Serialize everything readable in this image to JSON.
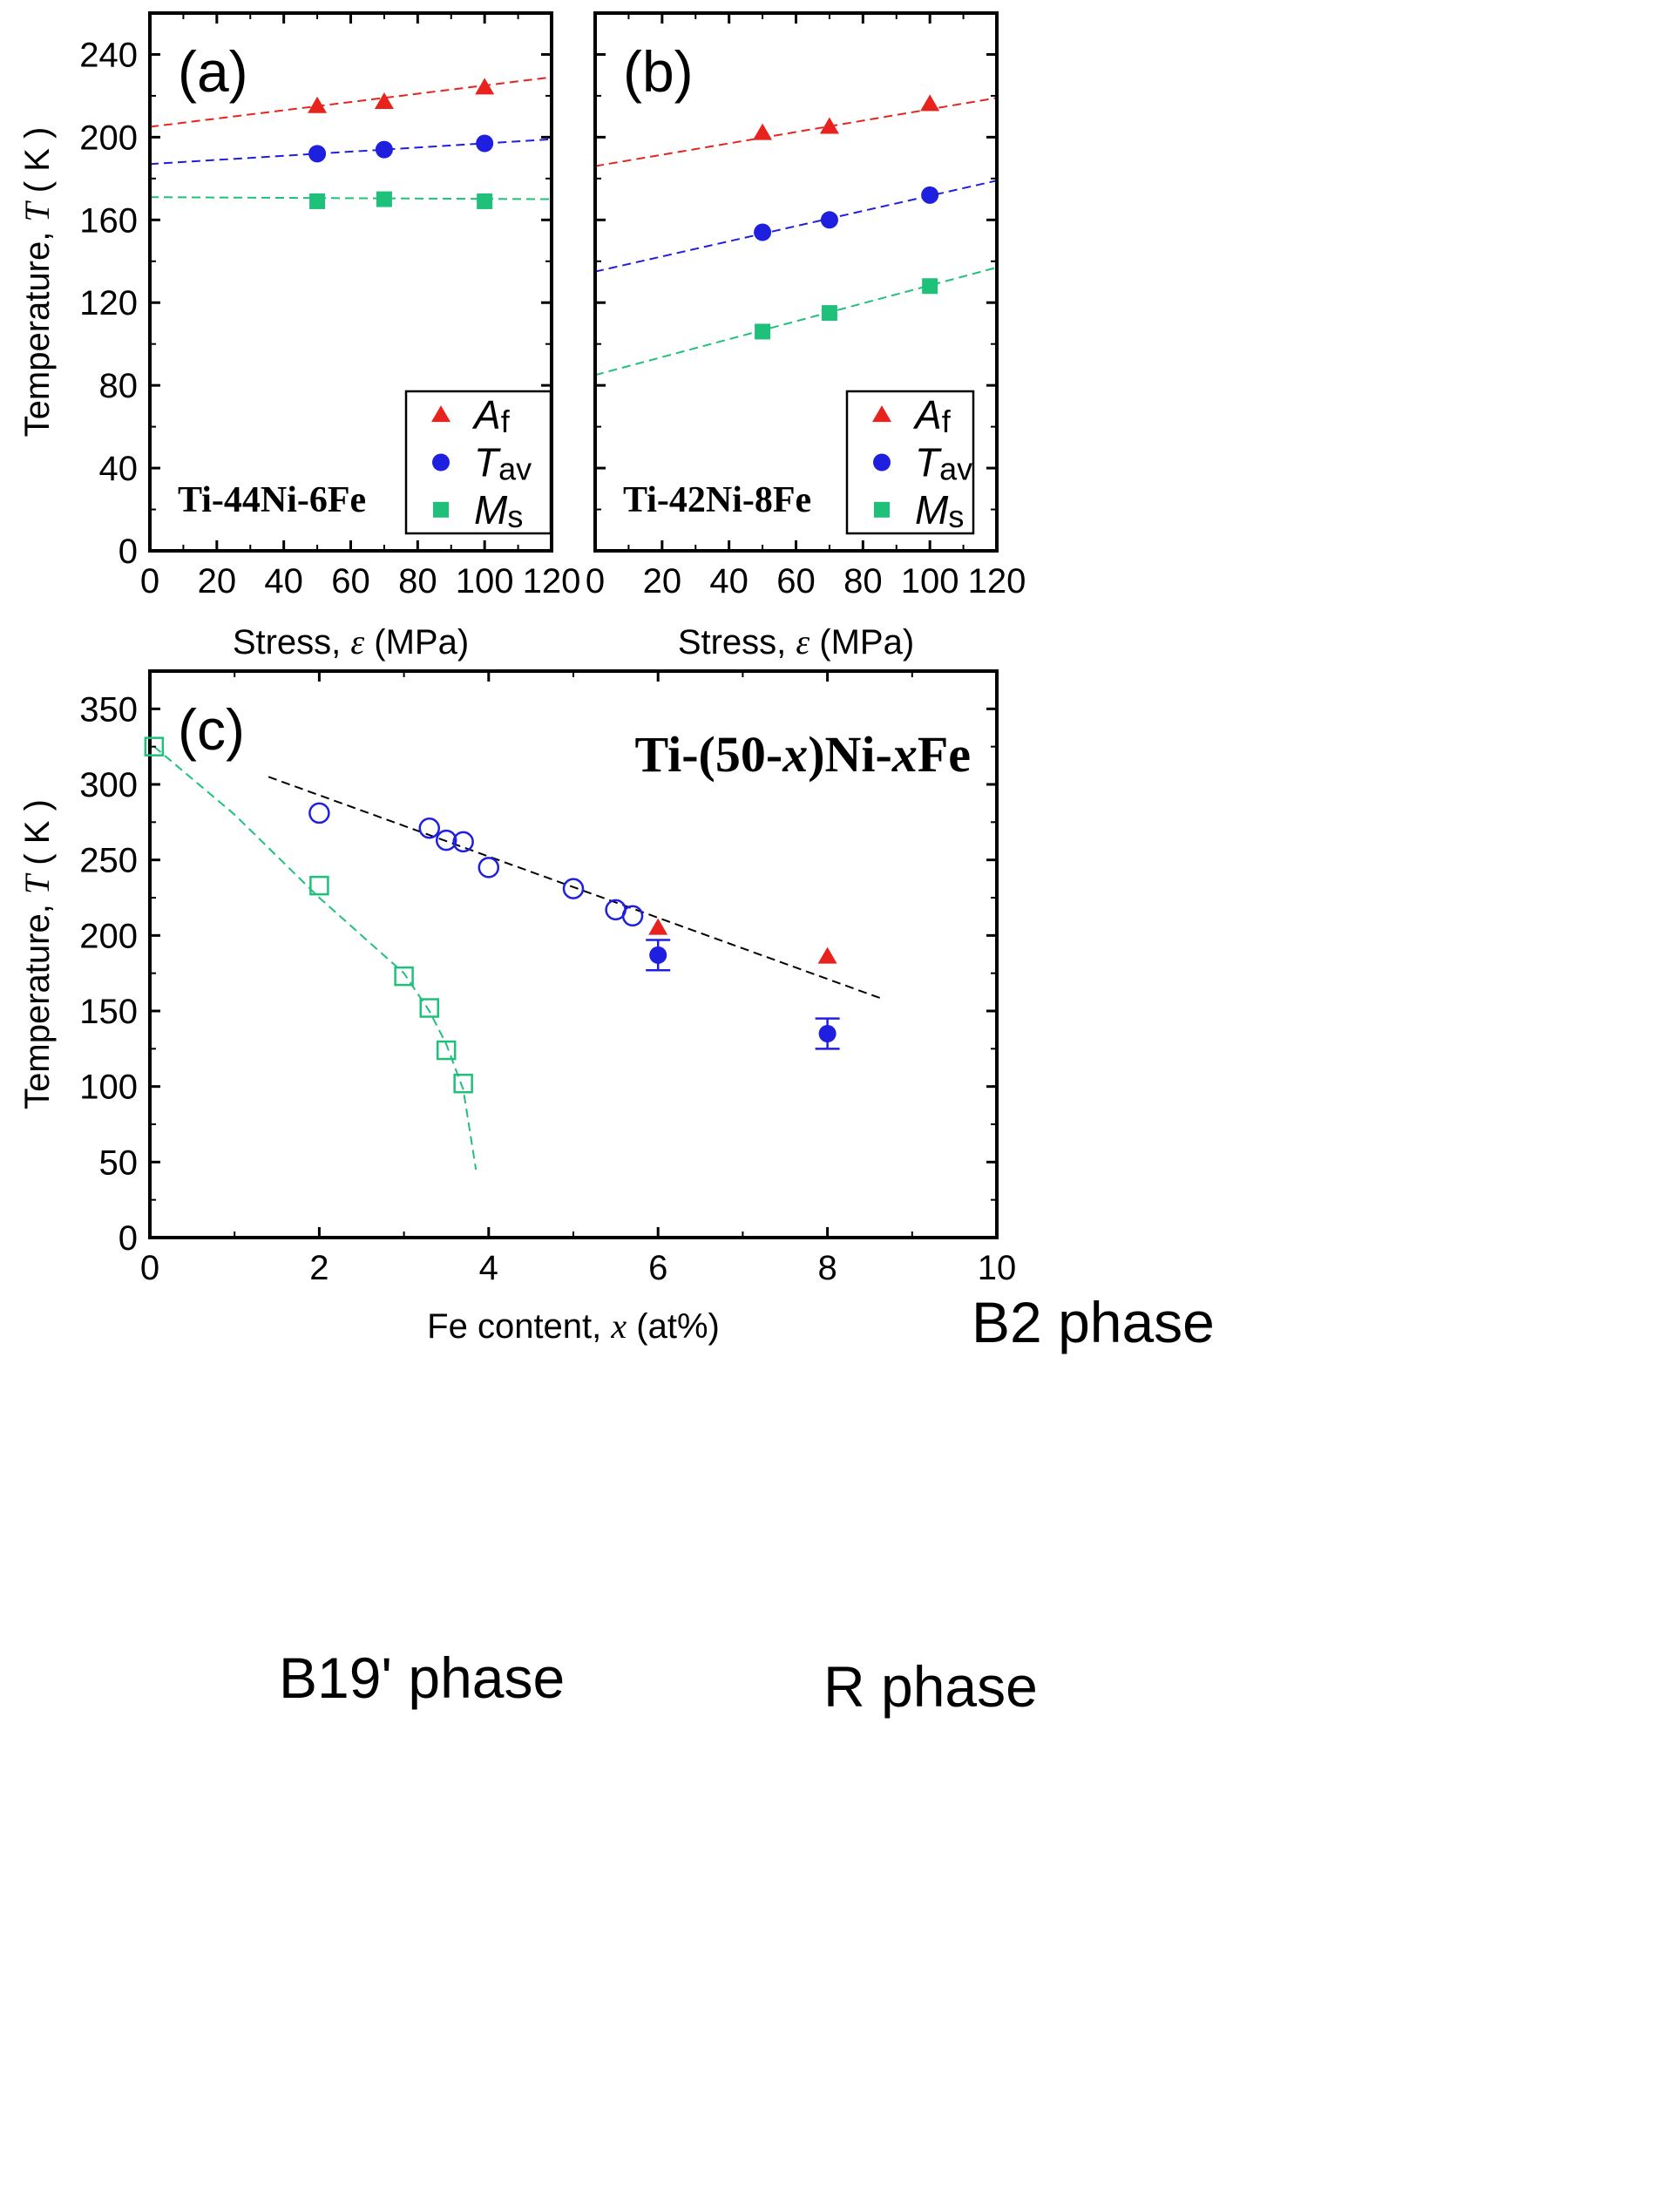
{
  "chart_data": [
    {
      "panel_label": "(a)",
      "type": "scatter",
      "annotation": "Ti-44Ni-6Fe",
      "xlabel_prefix": "Stress, ",
      "xlabel_symbol": "ε",
      "xlabel_suffix": " (MPa)",
      "ylabel_prefix": "Temperature, ",
      "ylabel_symbol": "T",
      "ylabel_suffix": " ( K )",
      "xlim": [
        0,
        120
      ],
      "ylim": [
        0,
        260
      ],
      "xticks": [
        0,
        20,
        40,
        60,
        80,
        100,
        120
      ],
      "yticks": [
        0,
        40,
        80,
        120,
        160,
        200,
        240
      ],
      "legend": {
        "placement": "lower-right"
      },
      "series": [
        {
          "name": "A",
          "name_sub": "f",
          "marker": "triangle",
          "color": "#e8231d",
          "x": [
            50,
            70,
            100
          ],
          "y": [
            215,
            217,
            224
          ],
          "fit": {
            "x": [
              0,
              120
            ],
            "y": [
              205,
              229
            ]
          }
        },
        {
          "name": "T",
          "name_sub": "av",
          "marker": "circle",
          "color": "#1f1fe0",
          "x": [
            50,
            70,
            100
          ],
          "y": [
            192,
            194,
            197
          ],
          "fit": {
            "x": [
              0,
              120
            ],
            "y": [
              187,
              199
            ]
          }
        },
        {
          "name": "M",
          "name_sub": "s",
          "marker": "square",
          "color": "#1fc07a",
          "x": [
            50,
            70,
            100
          ],
          "y": [
            169,
            170,
            169
          ],
          "fit": {
            "x": [
              0,
              120
            ],
            "y": [
              171,
              170
            ]
          }
        }
      ]
    },
    {
      "panel_label": "(b)",
      "type": "scatter",
      "annotation": "Ti-42Ni-8Fe",
      "xlabel_prefix": "Stress, ",
      "xlabel_symbol": "ε",
      "xlabel_suffix": " (MPa)",
      "xlim": [
        0,
        120
      ],
      "ylim": [
        0,
        260
      ],
      "xticks": [
        0,
        20,
        40,
        60,
        80,
        100,
        120
      ],
      "yticks": [
        0,
        40,
        80,
        120,
        160,
        200,
        240
      ],
      "legend": {
        "placement": "lower-right"
      },
      "series": [
        {
          "name": "A",
          "name_sub": "f",
          "marker": "triangle",
          "color": "#e8231d",
          "x": [
            50,
            70,
            100
          ],
          "y": [
            202,
            205,
            216
          ],
          "fit": {
            "x": [
              0,
              120
            ],
            "y": [
              186,
              219
            ]
          }
        },
        {
          "name": "T",
          "name_sub": "av",
          "marker": "circle",
          "color": "#1f1fe0",
          "x": [
            50,
            70,
            100
          ],
          "y": [
            154,
            160,
            172
          ],
          "fit": {
            "x": [
              0,
              120
            ],
            "y": [
              135,
              179
            ]
          }
        },
        {
          "name": "M",
          "name_sub": "s",
          "marker": "square",
          "color": "#1fc07a",
          "x": [
            50,
            70,
            100
          ],
          "y": [
            106,
            115,
            128
          ],
          "fit": {
            "x": [
              0,
              120
            ],
            "y": [
              85,
              137
            ]
          }
        }
      ]
    },
    {
      "panel_label": "(c)",
      "type": "scatter",
      "annotation_parts": [
        "Ti-(50-",
        "x",
        ")Ni-",
        "x",
        "Fe"
      ],
      "xlabel_prefix": "Fe content, ",
      "xlabel_symbol": "x",
      "xlabel_suffix": " (at%)",
      "ylabel_prefix": "Temperature, ",
      "ylabel_symbol": "T",
      "ylabel_suffix": " ( K )",
      "xlim": [
        0,
        10
      ],
      "ylim": [
        0,
        375
      ],
      "xticks": [
        0,
        2,
        4,
        6,
        8,
        10
      ],
      "yticks": [
        0,
        50,
        100,
        150,
        200,
        250,
        300,
        350
      ],
      "region_labels": [
        "B2 phase",
        "B19' phase",
        "R phase"
      ],
      "series": [
        {
          "marker": "open-square",
          "color": "#1fc07a",
          "x": [
            0.05,
            2,
            3,
            3.3,
            3.5,
            3.7
          ],
          "y": [
            325,
            233,
            173,
            152,
            124,
            102
          ]
        },
        {
          "marker": "open-circle",
          "color": "#1f1fe0",
          "x": [
            2,
            3.3,
            3.5,
            3.7,
            4,
            5,
            5.5,
            5.7
          ],
          "y": [
            281,
            271,
            263,
            262,
            245,
            231,
            217,
            213
          ]
        },
        {
          "marker": "triangle",
          "color": "#e8231d",
          "x": [
            6,
            8
          ],
          "y": [
            205,
            186
          ]
        },
        {
          "marker": "circle",
          "color": "#1f1fe0",
          "x": [
            6,
            8
          ],
          "y": [
            187,
            135
          ],
          "yerr": [
            10,
            10
          ]
        }
      ],
      "guide_lines": [
        {
          "color": "#1fc07a",
          "x": [
            0.05,
            1,
            2,
            3,
            3.3,
            3.5,
            3.7,
            3.85
          ],
          "y": [
            325,
            280,
            225,
            175,
            150,
            128,
            98,
            45
          ]
        },
        {
          "color": "#000000",
          "x": [
            1.4,
            8.65
          ],
          "y": [
            305,
            158
          ]
        }
      ]
    }
  ]
}
